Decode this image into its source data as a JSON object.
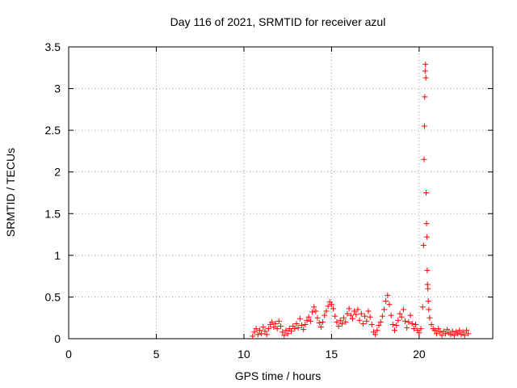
{
  "chart_data": {
    "type": "scatter",
    "title": "Day 116 of 2021, SRMTID for receiver azul",
    "xlabel": "GPS time / hours",
    "ylabel": "SRMTID / TECUs",
    "xlim": [
      0,
      24.2
    ],
    "ylim": [
      0,
      3.5
    ],
    "x_ticks": [
      0,
      5,
      10,
      15,
      20
    ],
    "x_tick_labels": [
      "0",
      "5",
      "10",
      "15",
      "20"
    ],
    "y_ticks": [
      0,
      0.5,
      1,
      1.5,
      2,
      2.5,
      3,
      3.5
    ],
    "y_tick_labels": [
      "0",
      "0.5",
      "1",
      "1.5",
      "2",
      "2.5",
      "3",
      "3.5"
    ],
    "grid": true,
    "marker": "+",
    "series": [
      {
        "name": "SRMTID",
        "color": "#ff0000",
        "points": [
          [
            10.5,
            0.03
          ],
          [
            10.6,
            0.08
          ],
          [
            10.7,
            0.12
          ],
          [
            10.8,
            0.05
          ],
          [
            10.9,
            0.1
          ],
          [
            11.0,
            0.06
          ],
          [
            11.1,
            0.14
          ],
          [
            11.2,
            0.09
          ],
          [
            11.3,
            0.05
          ],
          [
            11.4,
            0.12
          ],
          [
            11.5,
            0.17
          ],
          [
            11.6,
            0.2
          ],
          [
            11.7,
            0.14
          ],
          [
            11.8,
            0.18
          ],
          [
            11.9,
            0.12
          ],
          [
            12.0,
            0.21
          ],
          [
            12.1,
            0.15
          ],
          [
            12.2,
            0.08
          ],
          [
            12.3,
            0.04
          ],
          [
            12.4,
            0.1
          ],
          [
            12.5,
            0.06
          ],
          [
            12.6,
            0.12
          ],
          [
            12.7,
            0.09
          ],
          [
            12.8,
            0.15
          ],
          [
            12.9,
            0.12
          ],
          [
            13.0,
            0.18
          ],
          [
            13.1,
            0.13
          ],
          [
            13.2,
            0.24
          ],
          [
            13.3,
            0.16
          ],
          [
            13.4,
            0.11
          ],
          [
            13.5,
            0.17
          ],
          [
            13.6,
            0.22
          ],
          [
            13.7,
            0.26
          ],
          [
            13.8,
            0.21
          ],
          [
            13.9,
            0.32
          ],
          [
            14.0,
            0.38
          ],
          [
            14.1,
            0.33
          ],
          [
            14.2,
            0.25
          ],
          [
            14.3,
            0.19
          ],
          [
            14.4,
            0.14
          ],
          [
            14.5,
            0.2
          ],
          [
            14.6,
            0.28
          ],
          [
            14.7,
            0.33
          ],
          [
            14.8,
            0.39
          ],
          [
            14.9,
            0.44
          ],
          [
            15.0,
            0.41
          ],
          [
            15.1,
            0.36
          ],
          [
            15.2,
            0.27
          ],
          [
            15.3,
            0.2
          ],
          [
            15.4,
            0.15
          ],
          [
            15.5,
            0.22
          ],
          [
            15.6,
            0.18
          ],
          [
            15.7,
            0.25
          ],
          [
            15.8,
            0.2
          ],
          [
            15.9,
            0.3
          ],
          [
            16.0,
            0.36
          ],
          [
            16.1,
            0.28
          ],
          [
            16.2,
            0.24
          ],
          [
            16.3,
            0.33
          ],
          [
            16.4,
            0.29
          ],
          [
            16.5,
            0.35
          ],
          [
            16.6,
            0.22
          ],
          [
            16.7,
            0.3
          ],
          [
            16.8,
            0.18
          ],
          [
            16.9,
            0.27
          ],
          [
            17.0,
            0.21
          ],
          [
            17.1,
            0.33
          ],
          [
            17.2,
            0.26
          ],
          [
            17.3,
            0.17
          ],
          [
            17.4,
            0.08
          ],
          [
            17.5,
            0.05
          ],
          [
            17.6,
            0.1
          ],
          [
            17.7,
            0.16
          ],
          [
            17.8,
            0.2
          ],
          [
            17.9,
            0.27
          ],
          [
            18.0,
            0.35
          ],
          [
            18.1,
            0.45
          ],
          [
            18.2,
            0.52
          ],
          [
            18.3,
            0.41
          ],
          [
            18.4,
            0.28
          ],
          [
            18.5,
            0.17
          ],
          [
            18.6,
            0.1
          ],
          [
            18.7,
            0.16
          ],
          [
            18.8,
            0.22
          ],
          [
            18.9,
            0.3
          ],
          [
            19.0,
            0.26
          ],
          [
            19.1,
            0.35
          ],
          [
            19.2,
            0.21
          ],
          [
            19.3,
            0.13
          ],
          [
            19.4,
            0.2
          ],
          [
            19.5,
            0.28
          ],
          [
            19.6,
            0.18
          ],
          [
            19.7,
            0.12
          ],
          [
            19.8,
            0.17
          ],
          [
            19.9,
            0.1
          ],
          [
            20.0,
            0.07
          ],
          [
            20.1,
            0.12
          ],
          [
            20.2,
            0.38
          ],
          [
            20.25,
            1.12
          ],
          [
            20.28,
            2.15
          ],
          [
            20.3,
            2.55
          ],
          [
            20.32,
            2.9
          ],
          [
            20.34,
            3.21
          ],
          [
            20.36,
            3.29
          ],
          [
            20.38,
            3.13
          ],
          [
            20.4,
            1.75
          ],
          [
            20.42,
            1.38
          ],
          [
            20.44,
            1.22
          ],
          [
            20.46,
            0.82
          ],
          [
            20.48,
            0.65
          ],
          [
            20.5,
            0.6
          ],
          [
            20.52,
            0.45
          ],
          [
            20.55,
            0.35
          ],
          [
            20.6,
            0.25
          ],
          [
            20.7,
            0.17
          ],
          [
            20.8,
            0.12
          ],
          [
            20.9,
            0.1
          ],
          [
            21.0,
            0.06
          ],
          [
            21.1,
            0.12
          ],
          [
            21.2,
            0.08
          ],
          [
            21.3,
            0.04
          ],
          [
            21.4,
            0.09
          ],
          [
            21.5,
            0.06
          ],
          [
            21.6,
            0.11
          ],
          [
            21.7,
            0.07
          ],
          [
            21.8,
            0.05
          ],
          [
            21.9,
            0.09
          ],
          [
            22.0,
            0.04
          ],
          [
            22.1,
            0.08
          ],
          [
            22.2,
            0.06
          ],
          [
            22.3,
            0.1
          ],
          [
            22.4,
            0.05
          ],
          [
            22.5,
            0.08
          ],
          [
            22.6,
            0.04
          ],
          [
            22.7,
            0.1
          ],
          [
            22.8,
            0.06
          ]
        ]
      }
    ]
  }
}
